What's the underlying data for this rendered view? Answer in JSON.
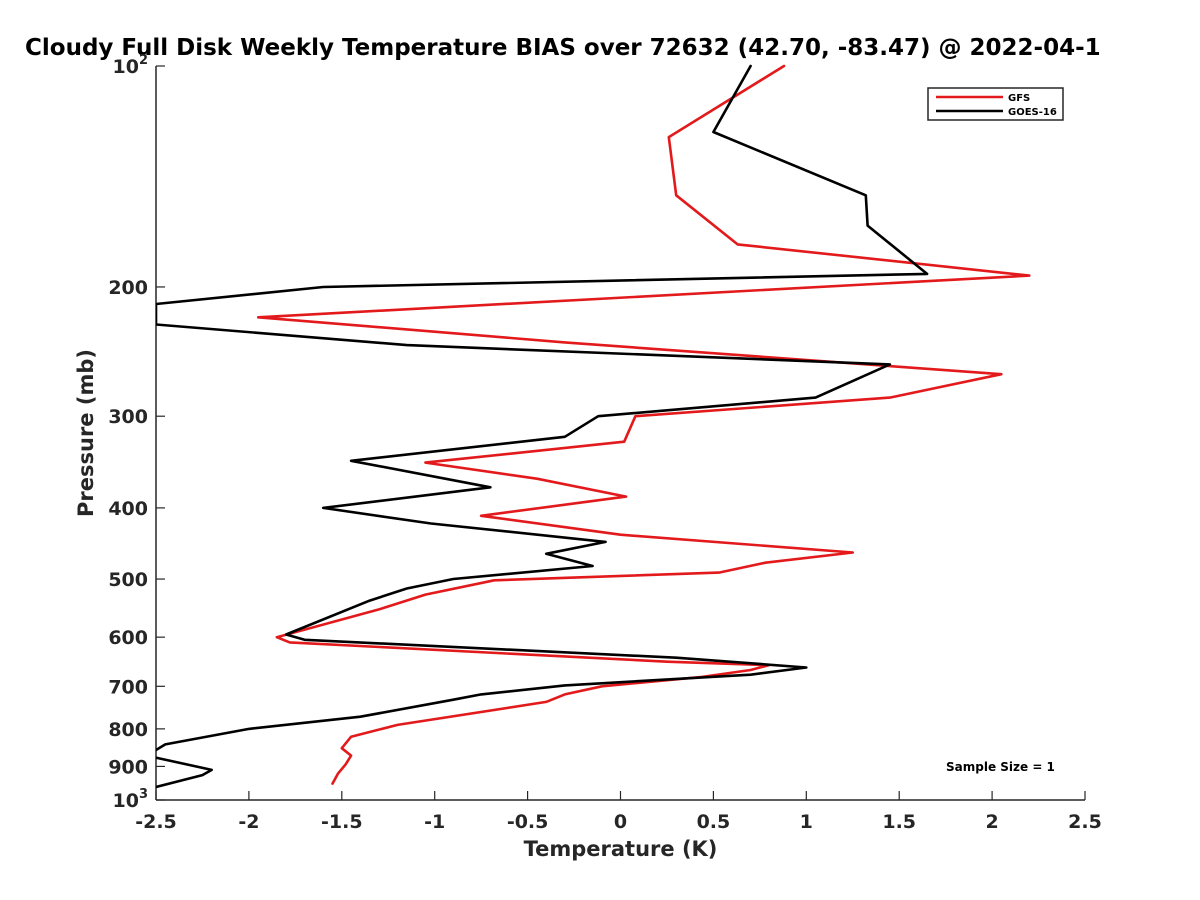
{
  "chart_data": {
    "type": "line",
    "title": "Cloudy Full Disk Weekly Temperature BIAS over 72632 (42.70, -83.47) @ 2022-04-1",
    "xlabel": "Temperature (K)",
    "ylabel": "Pressure (mb)",
    "xlim": [
      -2.5,
      2.5
    ],
    "ylim": [
      100,
      1000
    ],
    "y_scale": "log",
    "y_reversed": true,
    "grid": false,
    "legend_position": "top-right",
    "x_ticks": [
      "-2.5",
      "-2",
      "-1.5",
      "-1",
      "-0.5",
      "0",
      "0.5",
      "1",
      "1.5",
      "2",
      "2.5"
    ],
    "y_ticks": [
      {
        "value": 100,
        "base": "10",
        "exp": "2"
      },
      {
        "value": 200,
        "label": "200"
      },
      {
        "value": 300,
        "label": "300"
      },
      {
        "value": 400,
        "label": "400"
      },
      {
        "value": 500,
        "label": "500"
      },
      {
        "value": 600,
        "label": "600"
      },
      {
        "value": 700,
        "label": "700"
      },
      {
        "value": 800,
        "label": "800"
      },
      {
        "value": 900,
        "label": "900"
      },
      {
        "value": 1000,
        "base": "10",
        "exp": "3"
      }
    ],
    "annotation": "Sample Size = 1",
    "series": [
      {
        "name": "GFS",
        "color": "#e31a1c",
        "points": [
          [
            0.88,
            100
          ],
          [
            0.26,
            125
          ],
          [
            0.3,
            150
          ],
          [
            0.63,
            175
          ],
          [
            2.2,
            193
          ],
          [
            -1.95,
            220
          ],
          [
            -0.3,
            238
          ],
          [
            2.05,
            263
          ],
          [
            1.45,
            283
          ],
          [
            0.08,
            300
          ],
          [
            0.02,
            325
          ],
          [
            -1.05,
            347
          ],
          [
            -0.45,
            365
          ],
          [
            0.03,
            386
          ],
          [
            -0.75,
            410
          ],
          [
            0.0,
            435
          ],
          [
            1.25,
            460
          ],
          [
            0.78,
            475
          ],
          [
            0.53,
            490
          ],
          [
            -0.68,
            502
          ],
          [
            -1.05,
            525
          ],
          [
            -1.3,
            550
          ],
          [
            -1.85,
            600
          ],
          [
            -1.78,
            610
          ],
          [
            0.25,
            648
          ],
          [
            0.8,
            655
          ],
          [
            0.7,
            665
          ],
          [
            0.43,
            680
          ],
          [
            -0.1,
            700
          ],
          [
            -0.3,
            718
          ],
          [
            -0.4,
            735
          ],
          [
            -1.2,
            790
          ],
          [
            -1.45,
            820
          ],
          [
            -1.5,
            850
          ],
          [
            -1.45,
            870
          ],
          [
            -1.48,
            895
          ],
          [
            -1.52,
            920
          ],
          [
            -1.55,
            950
          ]
        ]
      },
      {
        "name": "GOES-16",
        "color": "#000000",
        "points": [
          [
            0.7,
            100
          ],
          [
            0.5,
            123
          ],
          [
            1.32,
            150
          ],
          [
            1.33,
            165
          ],
          [
            1.65,
            192
          ],
          [
            -1.6,
            200
          ],
          [
            -2.5,
            211
          ],
          [
            -2.5,
            225
          ],
          [
            -1.15,
            240
          ],
          [
            1.45,
            255
          ],
          [
            1.05,
            283
          ],
          [
            -0.12,
            300
          ],
          [
            -0.3,
            320
          ],
          [
            -1.45,
            345
          ],
          [
            -0.7,
            375
          ],
          [
            -1.6,
            400
          ],
          [
            -1.02,
            420
          ],
          [
            -0.08,
            445
          ],
          [
            -0.4,
            462
          ],
          [
            -0.15,
            480
          ],
          [
            -0.9,
            500
          ],
          [
            -1.15,
            515
          ],
          [
            -1.35,
            535
          ],
          [
            -1.8,
            595
          ],
          [
            -1.7,
            605
          ],
          [
            0.3,
            640
          ],
          [
            1.0,
            660
          ],
          [
            0.7,
            675
          ],
          [
            -0.3,
            698
          ],
          [
            -0.75,
            718
          ],
          [
            -0.9,
            730
          ],
          [
            -1.4,
            770
          ],
          [
            -2.0,
            800
          ],
          [
            -2.45,
            840
          ],
          [
            -2.55,
            870
          ],
          [
            -2.2,
            910
          ],
          [
            -2.25,
            925
          ],
          [
            -2.5,
            960
          ]
        ]
      }
    ]
  }
}
